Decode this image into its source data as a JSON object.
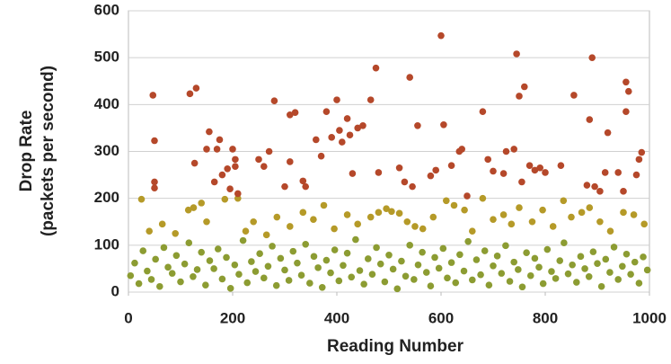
{
  "chart_data": {
    "type": "scatter",
    "x_label": "Reading Number",
    "y_label": [
      "Drop Rate",
      "(packets per second)"
    ],
    "xlim": [
      0,
      1000
    ],
    "xticks": [
      0,
      200,
      400,
      600,
      800,
      1000
    ],
    "ylim": [
      0,
      600
    ],
    "yticks": [
      0,
      100,
      200,
      300,
      400,
      500,
      600
    ],
    "grid": true,
    "series": [
      {
        "color": "#8c9c32",
        "x": [
          4,
          12,
          20,
          28,
          36,
          44,
          52,
          60,
          68,
          76,
          84,
          92,
          100,
          108,
          116,
          124,
          132,
          140,
          148,
          156,
          164,
          172,
          180,
          188,
          196,
          204,
          212,
          220,
          228,
          236,
          244,
          252,
          260,
          268,
          276,
          284,
          292,
          300,
          308,
          316,
          324,
          332,
          340,
          348,
          356,
          364,
          372,
          380,
          388,
          396,
          404,
          412,
          420,
          428,
          436,
          444,
          452,
          460,
          468,
          476,
          484,
          492,
          500,
          508,
          516,
          524,
          532,
          540,
          548,
          556,
          564,
          572,
          580,
          588,
          596,
          604,
          612,
          620,
          628,
          636,
          644,
          652,
          660,
          668,
          676,
          684,
          692,
          700,
          708,
          716,
          724,
          732,
          740,
          748,
          756,
          764,
          772,
          780,
          788,
          796,
          804,
          812,
          820,
          828,
          836,
          844,
          852,
          860,
          868,
          876,
          884,
          892,
          900,
          908,
          916,
          924,
          932,
          940,
          948,
          956,
          964,
          972,
          980,
          988,
          996
        ],
        "values": [
          35,
          62,
          18,
          88,
          45,
          27,
          70,
          12,
          95,
          53,
          40,
          78,
          22,
          60,
          105,
          33,
          48,
          85,
          15,
          67,
          50,
          92,
          28,
          74,
          8,
          58,
          38,
          110,
          20,
          65,
          44,
          82,
          30,
          55,
          98,
          14,
          72,
          47,
          25,
          87,
          62,
          36,
          102,
          19,
          76,
          52,
          10,
          68,
          41,
          90,
          24,
          57,
          83,
          32,
          112,
          46,
          17,
          71,
          38,
          95,
          60,
          22,
          79,
          49,
          7,
          66,
          34,
          100,
          27,
          58,
          85,
          42,
          13,
          74,
          51,
          93,
          30,
          63,
          20,
          80,
          45,
          108,
          26,
          69,
          37,
          88,
          15,
          56,
          77,
          40,
          99,
          23,
          64,
          48,
          11,
          84,
          35,
          72,
          53,
          18,
          91,
          44,
          29,
          67,
          105,
          39,
          58,
          21,
          76,
          50,
          33,
          86,
          61,
          12,
          70,
          42,
          96,
          27,
          55,
          81,
          38,
          64,
          19,
          75,
          47
        ]
      },
      {
        "color": "#b59a28",
        "x": [
          25,
          40,
          65,
          90,
          115,
          125,
          140,
          150,
          185,
          210,
          225,
          240,
          265,
          285,
          310,
          335,
          355,
          375,
          395,
          420,
          440,
          465,
          480,
          495,
          505,
          520,
          535,
          550,
          565,
          585,
          610,
          625,
          645,
          660,
          680,
          700,
          720,
          735,
          750,
          775,
          795,
          815,
          835,
          850,
          870,
          885,
          905,
          925,
          950,
          970,
          990
        ],
        "values": [
          198,
          130,
          145,
          125,
          175,
          180,
          190,
          150,
          198,
          200,
          130,
          150,
          122,
          160,
          140,
          170,
          155,
          185,
          135,
          165,
          145,
          160,
          170,
          178,
          172,
          168,
          150,
          140,
          135,
          160,
          195,
          185,
          175,
          130,
          200,
          155,
          165,
          145,
          180,
          150,
          175,
          140,
          195,
          160,
          170,
          180,
          150,
          130,
          170,
          165,
          145
        ]
      },
      {
        "color": "#b5482a",
        "x": [
          47,
          50,
          50,
          50,
          118,
          130,
          127,
          155,
          150,
          175,
          170,
          165,
          180,
          190,
          200,
          205,
          205,
          195,
          210,
          250,
          260,
          270,
          280,
          300,
          310,
          320,
          310,
          335,
          340,
          360,
          370,
          380,
          390,
          400,
          405,
          410,
          420,
          425,
          430,
          440,
          450,
          465,
          475,
          480,
          520,
          530,
          540,
          545,
          555,
          580,
          590,
          600,
          605,
          620,
          635,
          640,
          650,
          680,
          690,
          700,
          720,
          725,
          740,
          745,
          750,
          755,
          760,
          770,
          780,
          790,
          800,
          830,
          855,
          880,
          885,
          890,
          895,
          905,
          915,
          920,
          940,
          950,
          955,
          955,
          960,
          975,
          980,
          985
        ],
        "values": [
          420,
          323,
          235,
          222,
          423,
          435,
          275,
          342,
          305,
          325,
          305,
          235,
          250,
          263,
          305,
          283,
          268,
          220,
          210,
          283,
          268,
          300,
          408,
          225,
          378,
          383,
          278,
          237,
          225,
          325,
          290,
          385,
          330,
          410,
          345,
          320,
          370,
          335,
          253,
          350,
          355,
          410,
          478,
          255,
          265,
          235,
          458,
          225,
          355,
          248,
          260,
          547,
          357,
          270,
          300,
          305,
          205,
          385,
          283,
          258,
          253,
          300,
          305,
          508,
          418,
          235,
          438,
          270,
          260,
          265,
          255,
          270,
          420,
          228,
          368,
          500,
          225,
          215,
          255,
          340,
          255,
          215,
          385,
          448,
          428,
          250,
          283,
          298
        ]
      }
    ]
  }
}
